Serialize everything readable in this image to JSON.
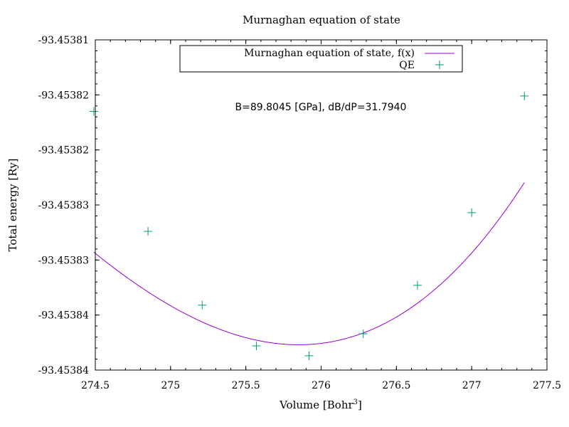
{
  "chart_data": {
    "type": "line",
    "title": "Murnaghan equation of state",
    "xlabel_main": "Volume [Bohr",
    "xlabel_sup": "3",
    "xlabel_end": "]",
    "ylabel": "Total energy [Ry]",
    "annotation": "B=89.8045 [GPa], dB/dP=31.7940",
    "xlim": [
      274.5,
      277.5
    ],
    "ylim": [
      -93.45384,
      -93.45381
    ],
    "x_ticks": [
      274.5,
      275,
      275.5,
      276,
      276.5,
      277,
      277.5
    ],
    "x_tick_labels": [
      "274.5",
      "275",
      "275.5",
      "276",
      "276.5",
      "277",
      "277.5"
    ],
    "y_ticks": [
      -93.45384,
      -93.453835,
      -93.45383,
      -93.453825,
      -93.45382,
      -93.453815,
      -93.45381
    ],
    "y_tick_labels": [
      "-93.45384",
      "-93.45384",
      "-93.45383",
      "-93.45383",
      "-93.45382",
      "-93.45382",
      "-93.45381"
    ],
    "legend_position": "top-center",
    "series": [
      {
        "name": "Murnaghan equation of state, f(x)",
        "kind": "line",
        "color": "#9400d3",
        "fit": {
          "x0": 275.85,
          "y0": -93.4538377,
          "a": 5.5e-06,
          "b": 7e-07
        }
      },
      {
        "name": "QE",
        "kind": "points",
        "color": "#009e73",
        "x": [
          274.49,
          274.85,
          275.21,
          275.57,
          275.92,
          276.28,
          276.64,
          277.0,
          277.35
        ],
        "y": [
          -93.4538165,
          -93.4538274,
          -93.4538341,
          -93.4538378,
          -93.4538387,
          -93.4538367,
          -93.4538323,
          -93.4538257,
          -93.4538151
        ]
      }
    ]
  }
}
